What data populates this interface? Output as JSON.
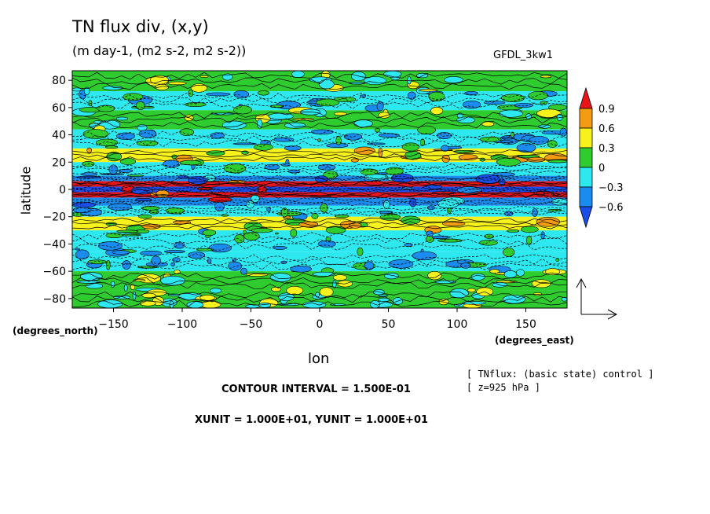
{
  "header": {
    "title": "TN flux div, (x,y)",
    "subtitle": "(m day-1, (m2 s-2, m2 s-2))",
    "model": "GFDL_3kw1"
  },
  "footer": {
    "contour_interval": "CONTOUR INTERVAL = 1.500E-01",
    "units_line": "XUNIT = 1.000E+01, YUNIT = 1.000E+01",
    "note_line1": "[ TNflux: (basic state) control ]",
    "note_line2": "[ z=925 hPa ]"
  },
  "chart_data": {
    "type": "heatmap",
    "title": "TN flux div, (x,y)",
    "subtitle": "(m day-1, (m2 s-2, m2 s-2))",
    "xlabel": "lon",
    "ylabel": "latitude",
    "x_unit_label": "(degrees_east)",
    "y_unit_label": "(degrees_north)",
    "xlim": [
      -180,
      180
    ],
    "ylim": [
      -87,
      87
    ],
    "x_ticks": [
      -150,
      -100,
      -50,
      0,
      50,
      100,
      150
    ],
    "x_tick_labels": [
      "−150",
      "−100",
      "−50",
      "0",
      "50",
      "100",
      "150"
    ],
    "y_ticks": [
      -80,
      -60,
      -40,
      -20,
      0,
      20,
      40,
      60,
      80
    ],
    "y_tick_labels": [
      "−80",
      "−60",
      "−40",
      "−20",
      "0",
      "20",
      "40",
      "60",
      "80"
    ],
    "colorbar": {
      "levels": [
        0.9,
        0.6,
        0.3,
        0,
        -0.3,
        -0.6
      ],
      "level_labels": [
        "0.9",
        "0.6",
        "0.3",
        "0",
        "−0.3",
        "−0.6"
      ],
      "colors": [
        "#e8141c",
        "#f39c12",
        "#f7f21c",
        "#2ecc2e",
        "#2ee8f0",
        "#1a8cf0",
        "#1a4ee8"
      ]
    },
    "bands": [
      {
        "lat": [
          72,
          87
        ],
        "value": 0.15
      },
      {
        "lat": [
          58,
          72
        ],
        "value": -0.15
      },
      {
        "lat": [
          44,
          58
        ],
        "value": 0.15
      },
      {
        "lat": [
          30,
          44
        ],
        "value": -0.15
      },
      {
        "lat": [
          20,
          30
        ],
        "value": 0.45
      },
      {
        "lat": [
          10,
          20
        ],
        "value": -0.15
      },
      {
        "lat": [
          6,
          10
        ],
        "value": -0.45
      },
      {
        "lat": [
          2,
          6
        ],
        "value": 1.05
      },
      {
        "lat": [
          -2,
          2
        ],
        "value": -0.75
      },
      {
        "lat": [
          -6,
          -2
        ],
        "value": 1.05
      },
      {
        "lat": [
          -12,
          -6
        ],
        "value": -0.45
      },
      {
        "lat": [
          -20,
          -12
        ],
        "value": -0.15
      },
      {
        "lat": [
          -30,
          -20
        ],
        "value": 0.45
      },
      {
        "lat": [
          -46,
          -30
        ],
        "value": -0.15
      },
      {
        "lat": [
          -60,
          -46
        ],
        "value": -0.15
      },
      {
        "lat": [
          -74,
          -60
        ],
        "value": 0.15
      },
      {
        "lat": [
          -87,
          -74
        ],
        "value": 0.15
      }
    ],
    "grid": false,
    "legend": "right"
  }
}
